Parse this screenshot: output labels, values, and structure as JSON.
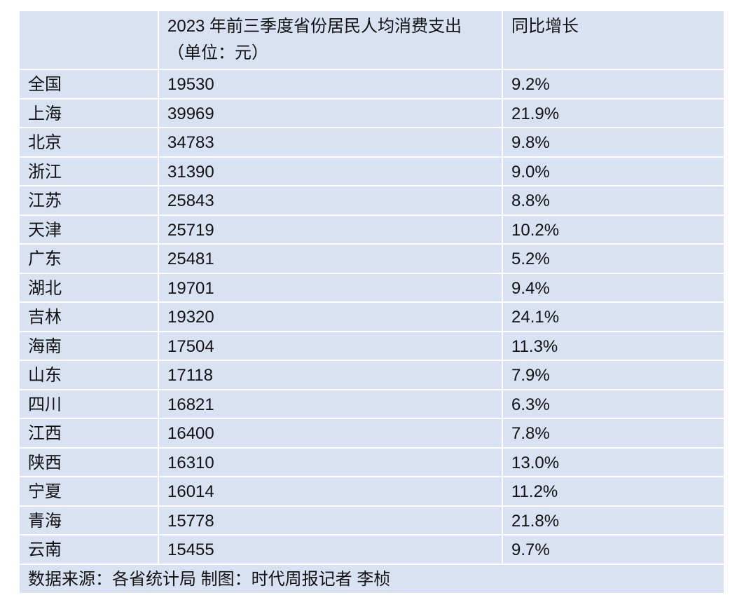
{
  "table": {
    "header": [
      "2023 年前三季度省份居民人均消费支出（单位：元）",
      "同比增长"
    ],
    "rows": [
      [
        "全国",
        "19530",
        "9.2%"
      ],
      [
        "上海",
        "39969",
        "21.9%"
      ],
      [
        "北京",
        "34783",
        "9.8%"
      ],
      [
        "浙江",
        "31390",
        "9.0%"
      ],
      [
        "江苏",
        "25843",
        "8.8%"
      ],
      [
        "天津",
        "25719",
        "10.2%"
      ],
      [
        "广东",
        "25481",
        "5.2%"
      ],
      [
        "湖北",
        "19701",
        "9.4%"
      ],
      [
        "吉林",
        "19320",
        "24.1%"
      ],
      [
        "海南",
        "17504",
        "11.3%"
      ],
      [
        "山东",
        "17118",
        "7.9%"
      ],
      [
        "四川",
        "16821",
        "6.3%"
      ],
      [
        "江西",
        "16400",
        "7.8%"
      ],
      [
        "陕西",
        "16310",
        "13.0%"
      ],
      [
        "宁夏",
        "16014",
        "11.2%"
      ],
      [
        "青海",
        "15778",
        "21.8%"
      ],
      [
        "云南",
        "15455",
        "9.7%"
      ]
    ],
    "footer": "数据来源：各省统计局    制图：时代周报记者 李桢"
  }
}
